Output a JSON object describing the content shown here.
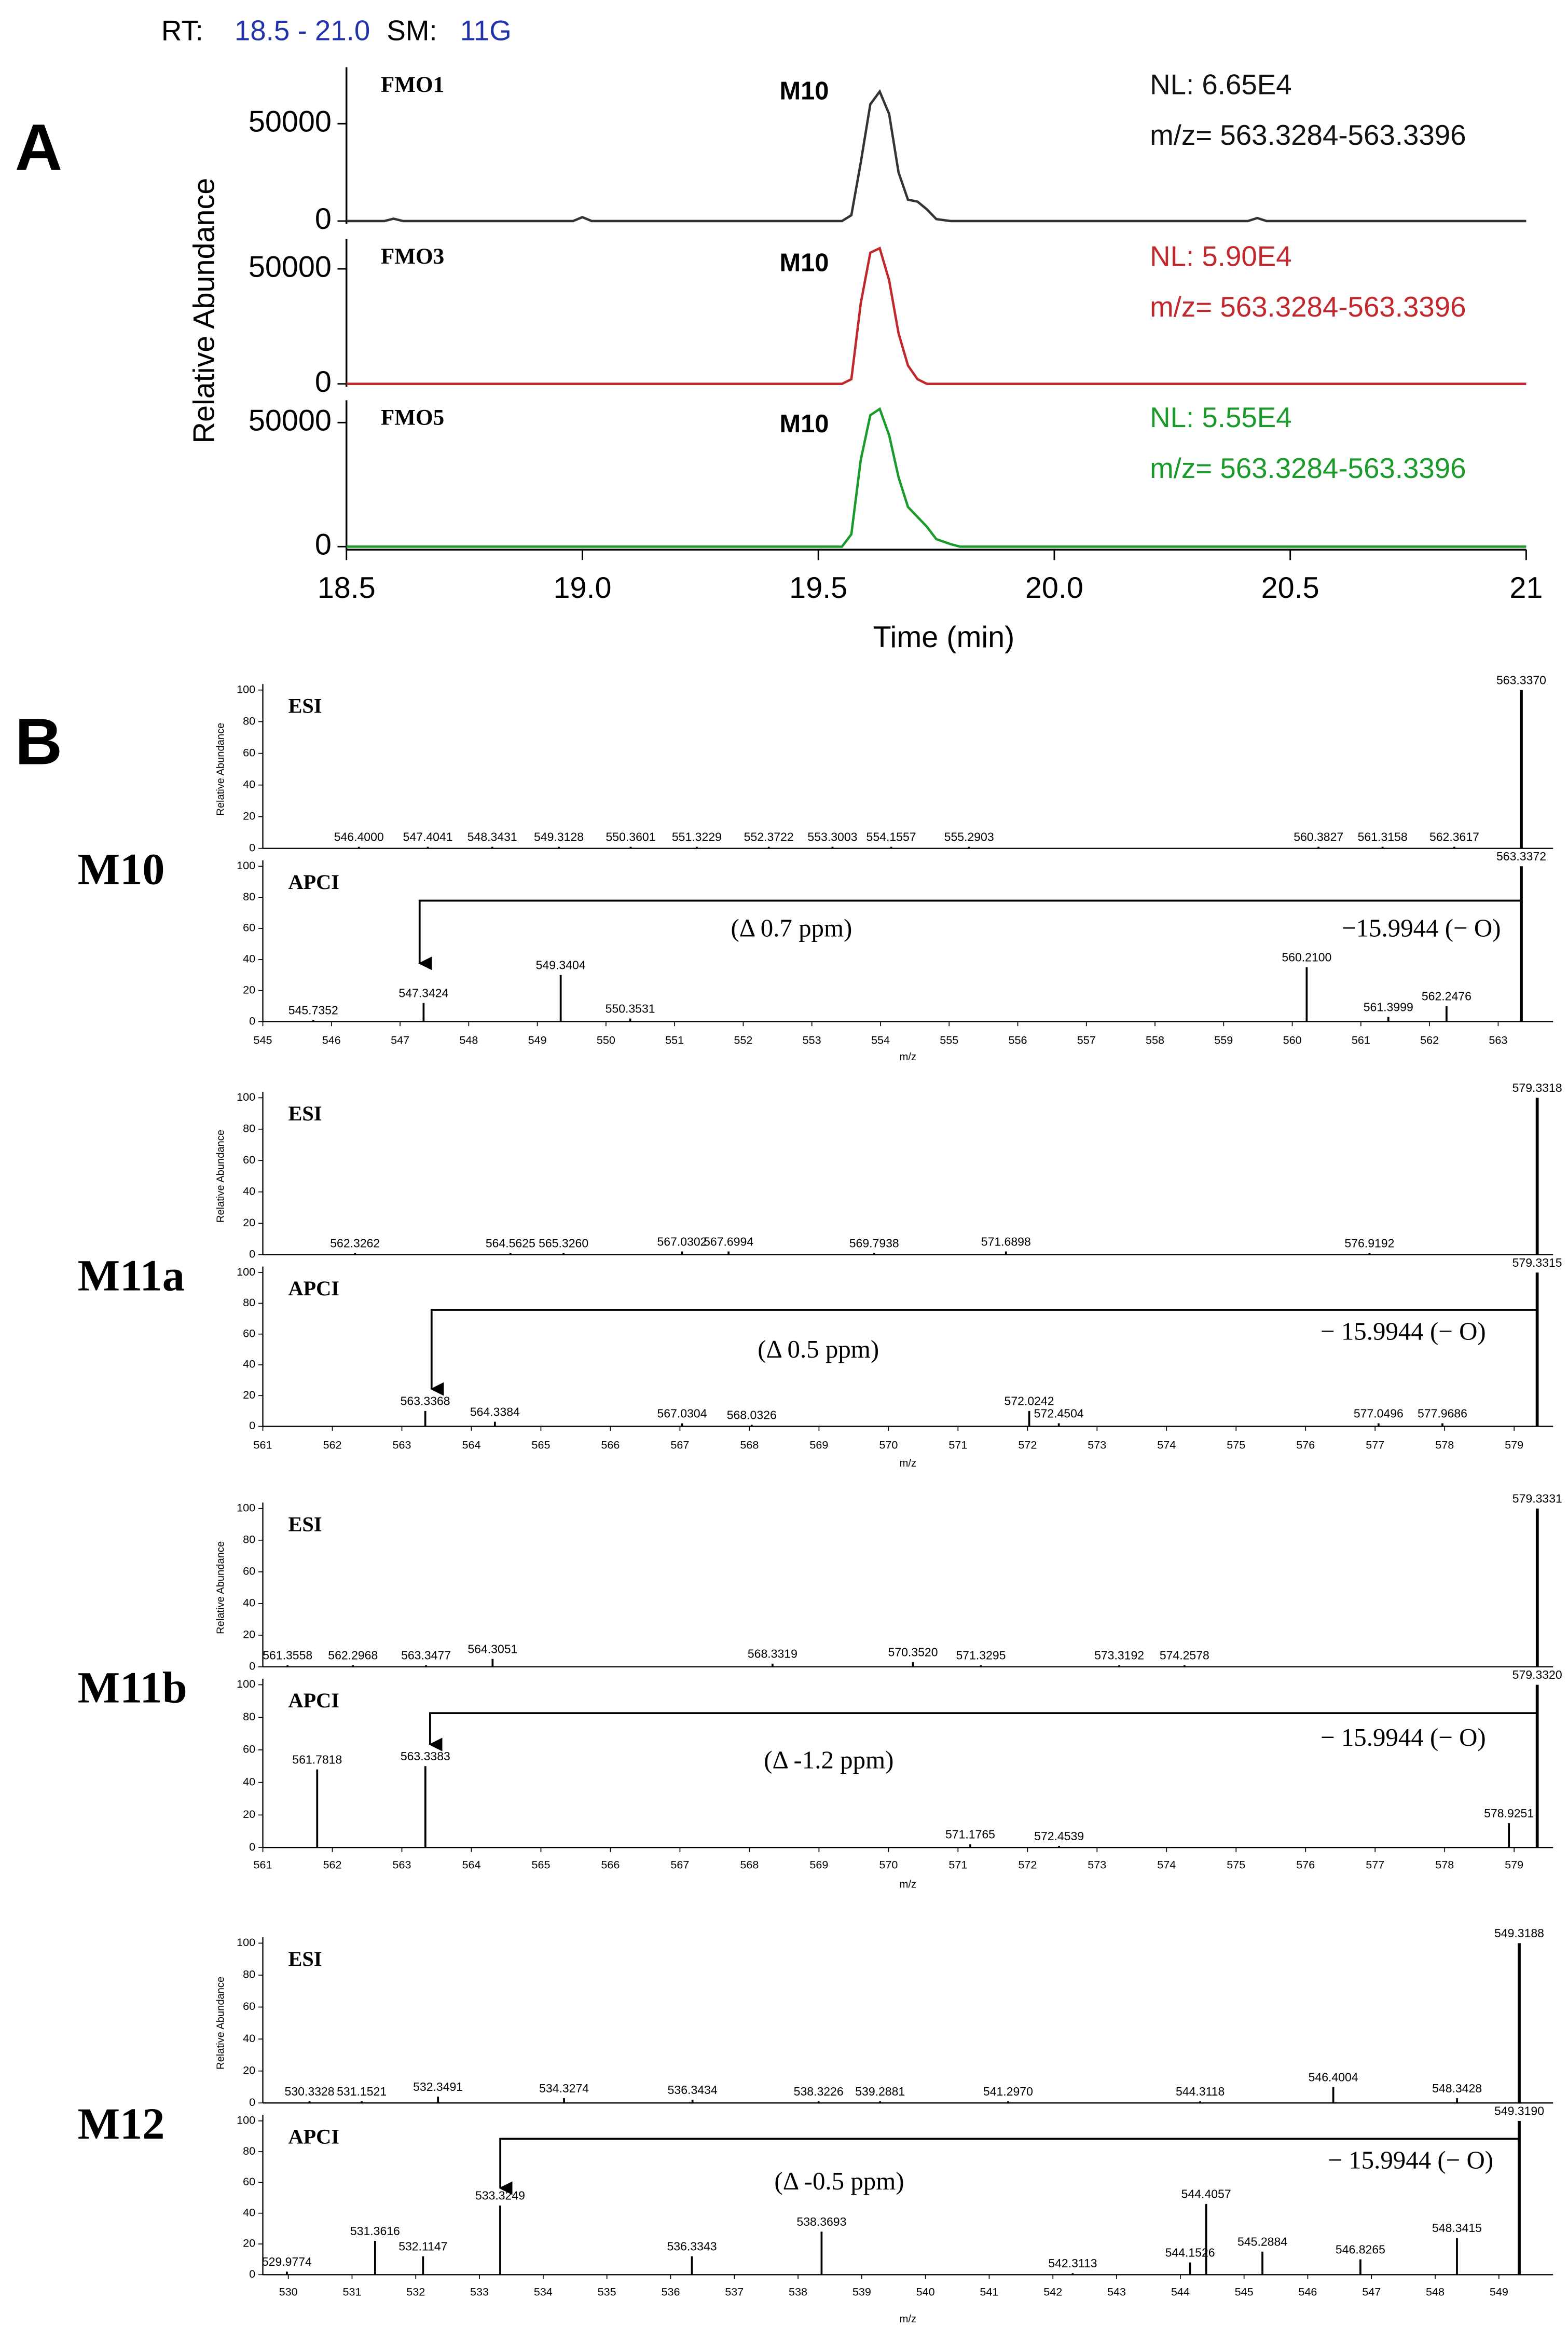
{
  "chart_data": [
    {
      "type": "line",
      "panel_label": "A",
      "rt_label": "RT:",
      "rt_range": "18.5 - 21.0",
      "sm_label": "SM:",
      "sm_value": "11G",
      "y_label": "Relative Abundance",
      "x_label": "Time (min)",
      "xlim": [
        18.5,
        21
      ],
      "xticks": [
        18.5,
        {
          "value": 19,
          "label": "19.0"
        },
        19.5,
        {
          "value": 20,
          "label": "20.0"
        },
        20.5,
        21
      ],
      "x": [
        18.5,
        18.58,
        18.6,
        18.62,
        18.98,
        19.0,
        19.02,
        19.55,
        19.57,
        19.59,
        19.61,
        19.63,
        19.65,
        19.67,
        19.69,
        19.71,
        19.73,
        19.75,
        19.78,
        19.8,
        20.41,
        20.43,
        20.45,
        21
      ],
      "panels": [
        {
          "title": "FMO1",
          "peak_label": "M10",
          "nl": "NL: 6.65E4",
          "mz": "m/z= 563.3284-563.3396",
          "color": "#333333",
          "text_color": "#111111",
          "ylim": [
            0,
            79000
          ],
          "yticks": [
            0,
            50000
          ],
          "values": [
            0,
            0,
            1200,
            0,
            0,
            2000,
            0,
            0,
            3000,
            30000,
            60000,
            66500,
            55000,
            25000,
            11000,
            10000,
            6000,
            1000,
            0,
            0,
            0,
            1500,
            0,
            0
          ]
        },
        {
          "title": "FMO3",
          "peak_label": "M10",
          "nl": "NL: 5.90E4",
          "mz": "m/z= 563.3284-563.3396",
          "color": "#c0282d",
          "text_color": "#c0282d",
          "ylim": [
            0,
            63000
          ],
          "yticks": [
            0,
            50000
          ],
          "values": [
            0,
            0,
            0,
            0,
            0,
            0,
            0,
            0,
            2000,
            35000,
            57000,
            59000,
            45000,
            22000,
            8000,
            2000,
            0,
            0,
            0,
            0,
            0,
            0,
            0,
            0
          ]
        },
        {
          "title": "FMO5",
          "peak_label": "M10",
          "nl": "NL: 5.55E4",
          "mz": "m/z= 563.3284-563.3396",
          "color": "#1a9a2a",
          "text_color": "#1a9a2a",
          "ylim": [
            0,
            59000
          ],
          "yticks": [
            0,
            50000
          ],
          "values": [
            0,
            0,
            0,
            0,
            0,
            0,
            0,
            0,
            5000,
            35000,
            53000,
            55500,
            45000,
            28000,
            16000,
            12000,
            8000,
            3000,
            1000,
            0,
            0,
            0,
            0,
            0
          ]
        }
      ]
    },
    {
      "type": "spectrum",
      "panel_label": "B",
      "compound": "M10",
      "delta": "(Δ 0.7 ppm)",
      "loss": "−15.9944 (− O)",
      "x_label": "m/z",
      "y_label": "Relative Abundance",
      "xlim": [
        545,
        563.8
      ],
      "xticks": [
        545,
        546,
        547,
        548,
        549,
        550,
        551,
        552,
        553,
        554,
        555,
        556,
        557,
        558,
        559,
        560,
        561,
        562,
        563
      ],
      "ylim": [
        0,
        100
      ],
      "yticks": [
        0,
        20,
        40,
        60,
        80,
        100
      ],
      "spectra": [
        {
          "name": "ESI",
          "x": [
            546.4,
            547.4041,
            548.3431,
            549.3128,
            550.3601,
            551.3229,
            552.3722,
            553.3003,
            554.1557,
            555.2903,
            560.3827,
            561.3158,
            562.3617,
            563.337
          ],
          "x_labels": [
            "546.4000",
            "547.4041",
            "548.3431",
            "549.3128",
            "550.3601",
            "551.3229",
            "552.3722",
            "553.3003",
            "554.1557",
            "555.2903",
            "560.3827",
            "561.3158",
            "562.3617",
            "563.3370"
          ],
          "values": [
            1,
            1,
            1,
            1,
            1,
            1,
            1,
            1,
            1,
            1,
            1,
            1,
            1,
            100
          ]
        },
        {
          "name": "APCI",
          "x": [
            545.7352,
            547.3424,
            549.3404,
            550.3531,
            560.21,
            561.3999,
            562.2476,
            563.3372
          ],
          "x_labels": [
            "545.7352",
            "547.3424",
            "549.3404",
            "550.3531",
            "560.2100",
            "561.3999",
            "562.2476",
            "563.3372"
          ],
          "values": [
            1,
            12,
            30,
            2,
            35,
            3,
            10,
            100
          ]
        }
      ]
    },
    {
      "type": "spectrum",
      "compound": "M11a",
      "delta": "(Δ 0.5 ppm)",
      "loss": "− 15.9944 (− O)",
      "x_label": "m/z",
      "y_label": "Relative Abundance",
      "xlim": [
        561,
        579.56
      ],
      "xticks": [
        561,
        562,
        563,
        564,
        565,
        566,
        567,
        568,
        569,
        570,
        571,
        572,
        573,
        574,
        575,
        576,
        577,
        578,
        579
      ],
      "ylim": [
        0,
        100
      ],
      "yticks": [
        0,
        20,
        40,
        60,
        80,
        100
      ],
      "spectra": [
        {
          "name": "ESI",
          "x": [
            562.3262,
            564.5625,
            565.326,
            567.0302,
            567.6994,
            569.7938,
            571.6898,
            576.9192,
            579.3318
          ],
          "x_labels": [
            "562.3262",
            "564.5625",
            "565.3260",
            "567.0302",
            "567.6994",
            "569.7938",
            "571.6898",
            "576.9192",
            "579.3318"
          ],
          "values": [
            1,
            1,
            1,
            2,
            2,
            1,
            2,
            1,
            100
          ]
        },
        {
          "name": "APCI",
          "x": [
            563.3368,
            564.3384,
            567.0304,
            568.0326,
            572.0242,
            572.4504,
            577.0496,
            577.9686,
            579.3315
          ],
          "x_labels": [
            "563.3368",
            "564.3384",
            "567.0304",
            "568.0326",
            "572.0242",
            "572.4504",
            "577.0496",
            "577.9686",
            "579.3315"
          ],
          "values": [
            10,
            3,
            2,
            1,
            10,
            2,
            2,
            2,
            100
          ]
        }
      ]
    },
    {
      "type": "spectrum",
      "compound": "M11b",
      "delta": "(Δ -1.2 ppm)",
      "loss": "− 15.9944 (− O)",
      "x_label": "m/z",
      "y_label": "Relative Abundance",
      "xlim": [
        561,
        579.56
      ],
      "xticks": [
        561,
        562,
        563,
        564,
        565,
        566,
        567,
        568,
        569,
        570,
        571,
        572,
        573,
        574,
        575,
        576,
        577,
        578,
        579
      ],
      "ylim": [
        0,
        100
      ],
      "yticks": [
        0,
        20,
        40,
        60,
        80,
        100
      ],
      "spectra": [
        {
          "name": "ESI",
          "x": [
            561.3558,
            562.2968,
            563.3477,
            564.3051,
            568.3319,
            570.352,
            571.3295,
            573.3192,
            574.2578,
            579.3331
          ],
          "x_labels": [
            "561.3558",
            "562.2968",
            "563.3477",
            "564.3051",
            "568.3319",
            "570.3520",
            "571.3295",
            "573.3192",
            "574.2578",
            "579.3331"
          ],
          "values": [
            1,
            1,
            1,
            5,
            2,
            3,
            1,
            1,
            1,
            100
          ]
        },
        {
          "name": "APCI",
          "x": [
            561.7818,
            563.3383,
            571.1765,
            572.4539,
            578.9251,
            579.332
          ],
          "x_labels": [
            "561.7818",
            "563.3383",
            "571.1765",
            "572.4539",
            "578.9251",
            "579.3320"
          ],
          "values": [
            48,
            50,
            2,
            1,
            15,
            100
          ]
        }
      ]
    },
    {
      "type": "spectrum",
      "compound": "M12",
      "delta": "(Δ -0.5 ppm)",
      "loss": "− 15.9944 (− O)",
      "x_label": "m/z",
      "y_label": "Relative Abundance",
      "xlim": [
        529.6,
        549.85
      ],
      "xticks": [
        530,
        531,
        532,
        533,
        534,
        535,
        536,
        537,
        538,
        539,
        540,
        541,
        542,
        543,
        544,
        545,
        546,
        547,
        548,
        549
      ],
      "ylim": [
        0,
        100
      ],
      "yticks": [
        0,
        20,
        40,
        60,
        80,
        100
      ],
      "spectra": [
        {
          "name": "ESI",
          "x": [
            530.3328,
            531.1521,
            532.3491,
            534.3274,
            536.3434,
            538.3226,
            539.2881,
            541.297,
            544.3118,
            546.4004,
            548.3428,
            549.3188
          ],
          "x_labels": [
            "530.3328",
            "531.1521",
            "532.3491",
            "534.3274",
            "536.3434",
            "538.3226",
            "539.2881",
            "541.2970",
            "544.3118",
            "546.4004",
            "548.3428",
            "549.3188"
          ],
          "values": [
            1,
            1,
            4,
            3,
            2,
            1,
            1,
            1,
            1,
            10,
            3,
            100
          ]
        },
        {
          "name": "APCI",
          "x": [
            529.9774,
            531.3616,
            532.1147,
            533.3249,
            536.3343,
            538.3693,
            542.3113,
            544.1526,
            544.4057,
            545.2884,
            546.8265,
            548.3415,
            549.319
          ],
          "x_labels": [
            "529.9774",
            "531.3616",
            "532.1147",
            "533.3249",
            "536.3343",
            "538.3693",
            "542.3113",
            "544.1526",
            "544.4057",
            "545.2884",
            "546.8265",
            "548.3415",
            "549.3190"
          ],
          "values": [
            2,
            22,
            12,
            45,
            12,
            28,
            1,
            8,
            46,
            15,
            10,
            24,
            100
          ]
        }
      ]
    }
  ]
}
